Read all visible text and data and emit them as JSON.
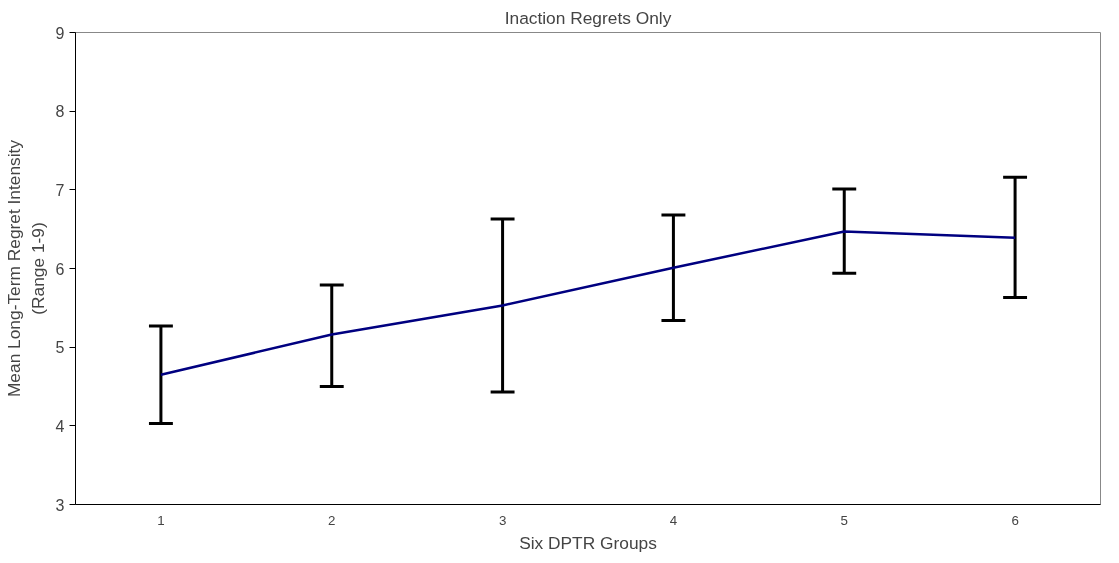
{
  "chart_data": {
    "type": "line",
    "title": "Inaction Regrets Only",
    "xlabel": "Six DPTR Groups",
    "ylabel": "Mean Long-Term Regret Intensity\n(Range 1-9)",
    "categories": [
      "1",
      "2",
      "3",
      "4",
      "5",
      "6"
    ],
    "series": [
      {
        "color": "#000080",
        "values": [
          4.65,
          5.16,
          5.53,
          6.01,
          6.47,
          6.39
        ],
        "errors": [
          [
            4.03,
            5.27
          ],
          [
            4.5,
            5.79
          ],
          [
            4.43,
            6.63
          ],
          [
            5.34,
            6.68
          ],
          [
            5.94,
            7.01
          ],
          [
            5.63,
            7.16
          ]
        ]
      }
    ],
    "ylim": [
      3,
      9
    ],
    "yticks": [
      3,
      4,
      5,
      6,
      7,
      8,
      9
    ],
    "grid": false,
    "marker": "none",
    "line_style": "solid"
  }
}
